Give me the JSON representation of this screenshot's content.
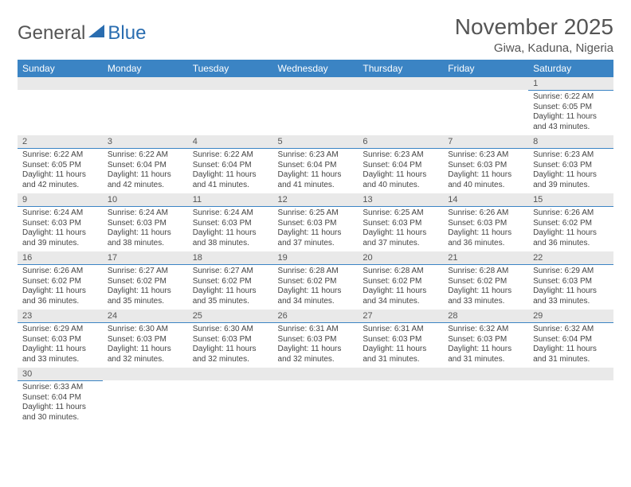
{
  "logo": {
    "general": "General",
    "blue": "Blue"
  },
  "title": "November 2025",
  "location": "Giwa, Kaduna, Nigeria",
  "colors": {
    "header_bg": "#3b84c4",
    "header_text": "#ffffff",
    "daynum_bg": "#e9e9e9",
    "rule": "#3b84c4",
    "body_text": "#444444",
    "title_text": "#555555"
  },
  "weekdays": [
    "Sunday",
    "Monday",
    "Tuesday",
    "Wednesday",
    "Thursday",
    "Friday",
    "Saturday"
  ],
  "weeks": [
    [
      {
        "n": "",
        "sr": "",
        "ss": "",
        "dl": ""
      },
      {
        "n": "",
        "sr": "",
        "ss": "",
        "dl": ""
      },
      {
        "n": "",
        "sr": "",
        "ss": "",
        "dl": ""
      },
      {
        "n": "",
        "sr": "",
        "ss": "",
        "dl": ""
      },
      {
        "n": "",
        "sr": "",
        "ss": "",
        "dl": ""
      },
      {
        "n": "",
        "sr": "",
        "ss": "",
        "dl": ""
      },
      {
        "n": "1",
        "sr": "Sunrise: 6:22 AM",
        "ss": "Sunset: 6:05 PM",
        "dl": "Daylight: 11 hours and 43 minutes."
      }
    ],
    [
      {
        "n": "2",
        "sr": "Sunrise: 6:22 AM",
        "ss": "Sunset: 6:05 PM",
        "dl": "Daylight: 11 hours and 42 minutes."
      },
      {
        "n": "3",
        "sr": "Sunrise: 6:22 AM",
        "ss": "Sunset: 6:04 PM",
        "dl": "Daylight: 11 hours and 42 minutes."
      },
      {
        "n": "4",
        "sr": "Sunrise: 6:22 AM",
        "ss": "Sunset: 6:04 PM",
        "dl": "Daylight: 11 hours and 41 minutes."
      },
      {
        "n": "5",
        "sr": "Sunrise: 6:23 AM",
        "ss": "Sunset: 6:04 PM",
        "dl": "Daylight: 11 hours and 41 minutes."
      },
      {
        "n": "6",
        "sr": "Sunrise: 6:23 AM",
        "ss": "Sunset: 6:04 PM",
        "dl": "Daylight: 11 hours and 40 minutes."
      },
      {
        "n": "7",
        "sr": "Sunrise: 6:23 AM",
        "ss": "Sunset: 6:03 PM",
        "dl": "Daylight: 11 hours and 40 minutes."
      },
      {
        "n": "8",
        "sr": "Sunrise: 6:23 AM",
        "ss": "Sunset: 6:03 PM",
        "dl": "Daylight: 11 hours and 39 minutes."
      }
    ],
    [
      {
        "n": "9",
        "sr": "Sunrise: 6:24 AM",
        "ss": "Sunset: 6:03 PM",
        "dl": "Daylight: 11 hours and 39 minutes."
      },
      {
        "n": "10",
        "sr": "Sunrise: 6:24 AM",
        "ss": "Sunset: 6:03 PM",
        "dl": "Daylight: 11 hours and 38 minutes."
      },
      {
        "n": "11",
        "sr": "Sunrise: 6:24 AM",
        "ss": "Sunset: 6:03 PM",
        "dl": "Daylight: 11 hours and 38 minutes."
      },
      {
        "n": "12",
        "sr": "Sunrise: 6:25 AM",
        "ss": "Sunset: 6:03 PM",
        "dl": "Daylight: 11 hours and 37 minutes."
      },
      {
        "n": "13",
        "sr": "Sunrise: 6:25 AM",
        "ss": "Sunset: 6:03 PM",
        "dl": "Daylight: 11 hours and 37 minutes."
      },
      {
        "n": "14",
        "sr": "Sunrise: 6:26 AM",
        "ss": "Sunset: 6:03 PM",
        "dl": "Daylight: 11 hours and 36 minutes."
      },
      {
        "n": "15",
        "sr": "Sunrise: 6:26 AM",
        "ss": "Sunset: 6:02 PM",
        "dl": "Daylight: 11 hours and 36 minutes."
      }
    ],
    [
      {
        "n": "16",
        "sr": "Sunrise: 6:26 AM",
        "ss": "Sunset: 6:02 PM",
        "dl": "Daylight: 11 hours and 36 minutes."
      },
      {
        "n": "17",
        "sr": "Sunrise: 6:27 AM",
        "ss": "Sunset: 6:02 PM",
        "dl": "Daylight: 11 hours and 35 minutes."
      },
      {
        "n": "18",
        "sr": "Sunrise: 6:27 AM",
        "ss": "Sunset: 6:02 PM",
        "dl": "Daylight: 11 hours and 35 minutes."
      },
      {
        "n": "19",
        "sr": "Sunrise: 6:28 AM",
        "ss": "Sunset: 6:02 PM",
        "dl": "Daylight: 11 hours and 34 minutes."
      },
      {
        "n": "20",
        "sr": "Sunrise: 6:28 AM",
        "ss": "Sunset: 6:02 PM",
        "dl": "Daylight: 11 hours and 34 minutes."
      },
      {
        "n": "21",
        "sr": "Sunrise: 6:28 AM",
        "ss": "Sunset: 6:02 PM",
        "dl": "Daylight: 11 hours and 33 minutes."
      },
      {
        "n": "22",
        "sr": "Sunrise: 6:29 AM",
        "ss": "Sunset: 6:03 PM",
        "dl": "Daylight: 11 hours and 33 minutes."
      }
    ],
    [
      {
        "n": "23",
        "sr": "Sunrise: 6:29 AM",
        "ss": "Sunset: 6:03 PM",
        "dl": "Daylight: 11 hours and 33 minutes."
      },
      {
        "n": "24",
        "sr": "Sunrise: 6:30 AM",
        "ss": "Sunset: 6:03 PM",
        "dl": "Daylight: 11 hours and 32 minutes."
      },
      {
        "n": "25",
        "sr": "Sunrise: 6:30 AM",
        "ss": "Sunset: 6:03 PM",
        "dl": "Daylight: 11 hours and 32 minutes."
      },
      {
        "n": "26",
        "sr": "Sunrise: 6:31 AM",
        "ss": "Sunset: 6:03 PM",
        "dl": "Daylight: 11 hours and 32 minutes."
      },
      {
        "n": "27",
        "sr": "Sunrise: 6:31 AM",
        "ss": "Sunset: 6:03 PM",
        "dl": "Daylight: 11 hours and 31 minutes."
      },
      {
        "n": "28",
        "sr": "Sunrise: 6:32 AM",
        "ss": "Sunset: 6:03 PM",
        "dl": "Daylight: 11 hours and 31 minutes."
      },
      {
        "n": "29",
        "sr": "Sunrise: 6:32 AM",
        "ss": "Sunset: 6:04 PM",
        "dl": "Daylight: 11 hours and 31 minutes."
      }
    ],
    [
      {
        "n": "30",
        "sr": "Sunrise: 6:33 AM",
        "ss": "Sunset: 6:04 PM",
        "dl": "Daylight: 11 hours and 30 minutes."
      },
      {
        "n": "",
        "sr": "",
        "ss": "",
        "dl": ""
      },
      {
        "n": "",
        "sr": "",
        "ss": "",
        "dl": ""
      },
      {
        "n": "",
        "sr": "",
        "ss": "",
        "dl": ""
      },
      {
        "n": "",
        "sr": "",
        "ss": "",
        "dl": ""
      },
      {
        "n": "",
        "sr": "",
        "ss": "",
        "dl": ""
      },
      {
        "n": "",
        "sr": "",
        "ss": "",
        "dl": ""
      }
    ]
  ]
}
